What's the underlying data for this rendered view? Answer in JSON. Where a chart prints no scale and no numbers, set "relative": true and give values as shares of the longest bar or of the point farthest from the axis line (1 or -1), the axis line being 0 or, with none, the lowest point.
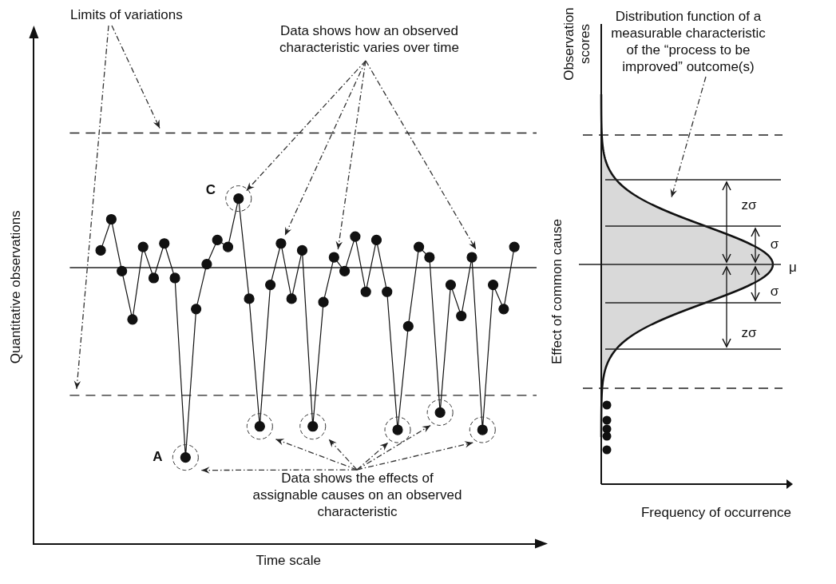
{
  "chart_data": [
    {
      "type": "line",
      "relative": true,
      "xlabel": "Time scale",
      "ylabel": "Quantitative observations",
      "categories": [
        null,
        null,
        null,
        null,
        null,
        null,
        null,
        null,
        null,
        null,
        null,
        null,
        null,
        null,
        null,
        null,
        null,
        null,
        null,
        null,
        null,
        null,
        null,
        null,
        null,
        null,
        null,
        null,
        null,
        null,
        null,
        null,
        null,
        null,
        null,
        null,
        null,
        null,
        null,
        null
      ],
      "series": [
        {
          "color": "#111111",
          "values": [
            0.85,
            0.94,
            0.79,
            0.65,
            0.86,
            0.77,
            0.87,
            0.77,
            0.25,
            0.68,
            0.81,
            0.88,
            0.86,
            1,
            0.71,
            0.34,
            0.75,
            0.87,
            0.71,
            0.85,
            0.34,
            0.7,
            0.83,
            0.79,
            0.89,
            0.73,
            0.88,
            0.73,
            0.33,
            0.63,
            0.86,
            0.83,
            0.38,
            0.75,
            0.66,
            0.83,
            0.33,
            0.75,
            0.68,
            0.86
          ]
        }
      ],
      "marker": "circle",
      "line_style": "solid",
      "grid": false,
      "legend": false,
      "ref_lines": [
        {
          "axis": "y",
          "value": 0.8,
          "color": "#222222",
          "line_style": "solid"
        },
        {
          "axis": "y",
          "value": 1.19,
          "color": "#222222",
          "line_style": "dashed"
        },
        {
          "axis": "y",
          "value": 0.43,
          "color": "#222222",
          "line_style": "dashed"
        }
      ],
      "annotations": [
        "Limits of variations",
        "Data shows how an observed characteristic varies over time",
        "Data shows the effects of assignable causes on an observed characteristic",
        "A",
        "C"
      ]
    },
    {
      "type": "other",
      "title": "Distribution function of a measurable characteristic of the “process to be improved” outcome(s)",
      "ylabel": "Observation scores",
      "xlabel": "Frequency of occurrence",
      "annotations": [
        "Effect of common cause",
        "zσ",
        "σ",
        "μ",
        "σ",
        "zσ"
      ]
    }
  ]
}
